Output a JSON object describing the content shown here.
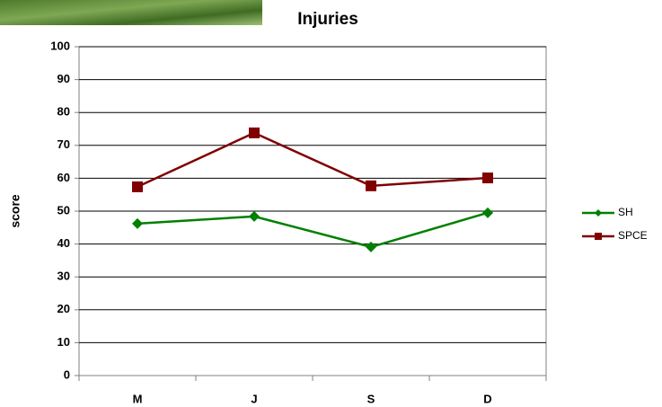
{
  "chart_data": {
    "type": "line",
    "title": "Injuries",
    "y_label": "score",
    "categories": [
      "M",
      "J",
      "S",
      "D"
    ],
    "series": [
      {
        "name": "SH",
        "color": "#008000",
        "marker": "diamond",
        "values": [
          46.2,
          48.4,
          39.1,
          49.5
        ]
      },
      {
        "name": "SPCE",
        "color": "#800000",
        "marker": "square",
        "values": [
          57.4,
          73.8,
          57.7,
          60.1
        ]
      }
    ],
    "ylim": [
      0,
      100
    ],
    "yticks": [
      0,
      10,
      20,
      30,
      40,
      50,
      60,
      70,
      80,
      90,
      100
    ],
    "grid": true,
    "legend": "right"
  }
}
